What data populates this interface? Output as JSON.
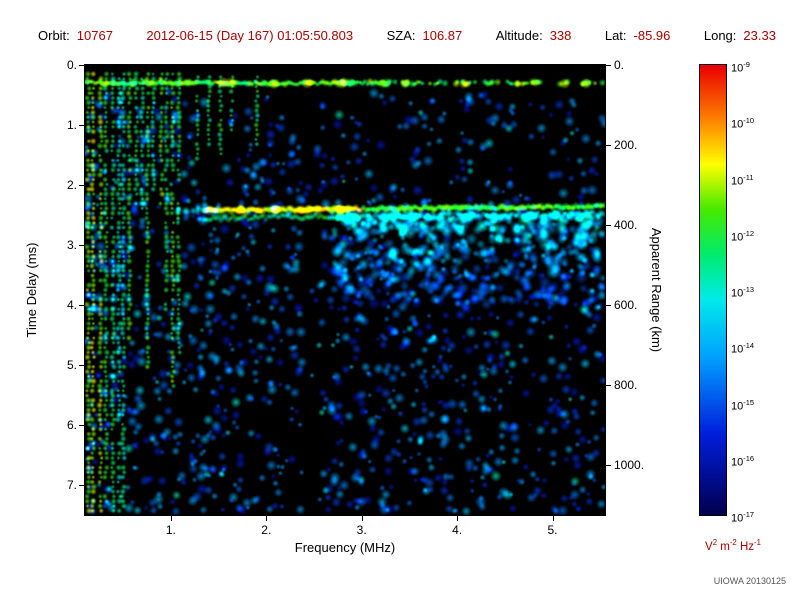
{
  "header": {
    "fields": [
      {
        "label": "Orbit:",
        "value": "10767"
      },
      {
        "label": "",
        "value": "2012-06-15 (Day 167) 01:05:50.803"
      },
      {
        "label": "SZA:",
        "value": "106.87"
      },
      {
        "label": "Altitude:",
        "value": "338"
      },
      {
        "label": "Lat:",
        "value": "-85.96"
      },
      {
        "label": "Long:",
        "value": "23.33"
      }
    ]
  },
  "footer": {
    "credit": "UIOWA 20130125"
  },
  "colors": {
    "header_label": "#000000",
    "header_value": "#aa0000",
    "unit_label": "#aa0000",
    "plot_background": "#000000",
    "frame": "#000000"
  },
  "chart_data": {
    "type": "heatmap",
    "xlabel": "Frequency (MHz)",
    "ylabel": "Time Delay (ms)",
    "ylabel_right": "Apparent Range (km)",
    "x_range_mhz": [
      0.1,
      5.55
    ],
    "x_ticks": [
      {
        "value": 1,
        "label": "1."
      },
      {
        "value": 2,
        "label": "2."
      },
      {
        "value": 3,
        "label": "3."
      },
      {
        "value": 4,
        "label": "4."
      },
      {
        "value": 5,
        "label": "5."
      }
    ],
    "y_range_ms": [
      0,
      7.5
    ],
    "y_ticks": [
      {
        "value": 0,
        "label": "0."
      },
      {
        "value": 1,
        "label": "1."
      },
      {
        "value": 2,
        "label": "2."
      },
      {
        "value": 3,
        "label": "3."
      },
      {
        "value": 4,
        "label": "4."
      },
      {
        "value": 5,
        "label": "5."
      },
      {
        "value": 6,
        "label": "6."
      },
      {
        "value": 7,
        "label": "7."
      }
    ],
    "y2_ticks_km": [
      {
        "value": 0,
        "label": "0."
      },
      {
        "value": 200,
        "label": "200."
      },
      {
        "value": 400,
        "label": "400."
      },
      {
        "value": 600,
        "label": "600."
      },
      {
        "value": 800,
        "label": "800."
      },
      {
        "value": 1000,
        "label": "1000."
      }
    ],
    "km_per_ms": 150,
    "colorbar": {
      "scale": "log",
      "tick_exponents": [
        -9,
        -10,
        -11,
        -12,
        -13,
        -14,
        -15,
        -16,
        -17
      ],
      "unit_parts": [
        {
          "base": "V",
          "exp": "2"
        },
        {
          "base": "m",
          "exp": "-2"
        },
        {
          "base": "Hz",
          "exp": "-1"
        }
      ]
    },
    "features": {
      "seed": 20130125,
      "surface_echo_delay_ms": 0.3,
      "ionosphere_echo": {
        "delay_ms": 2.42,
        "start_mhz": 1.0,
        "bright_mhz": [
          1.35,
          3.0
        ]
      },
      "plasma_lines": {
        "start_mhz": 0.13,
        "end_mhz": 1.08,
        "count": 16,
        "short_lines_mhz": [
          1.28,
          1.4,
          1.52,
          1.64,
          1.9
        ]
      },
      "dark_columns_mhz": [
        [
          1.25,
          1.75
        ],
        [
          2.38,
          2.58
        ]
      ],
      "speckle_count": 1600,
      "diffuse_cloud": {
        "mhz": [
          2.7,
          5.55
        ],
        "delay_ms": [
          2.5,
          4.0
        ],
        "count": 550
      }
    }
  }
}
